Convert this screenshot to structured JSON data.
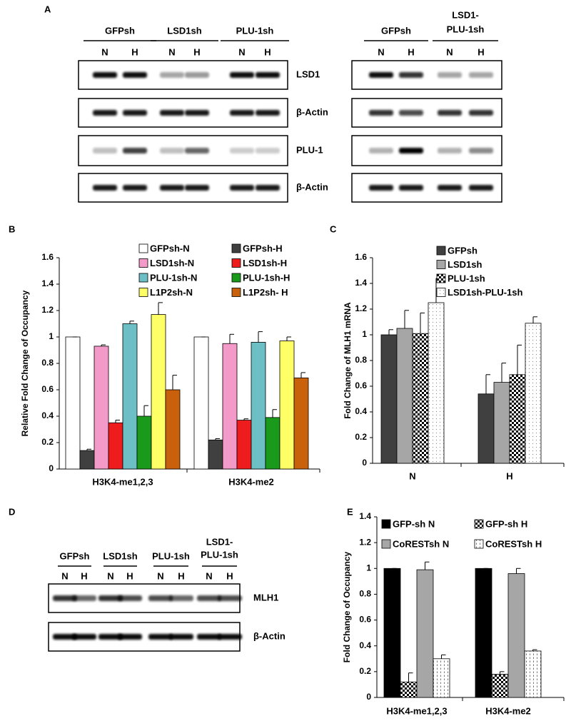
{
  "panel_a": {
    "label": "A",
    "blots": [
      {
        "groups": [
          {
            "name": [
              "GFPsh"
            ],
            "lanes": [
              "N",
              "H"
            ]
          },
          {
            "name": [
              "LSD1sh"
            ],
            "lanes": [
              "N",
              "H"
            ]
          },
          {
            "name": [
              "PLU-1sh"
            ],
            "lanes": [
              "N",
              "H"
            ]
          }
        ]
      },
      {
        "groups": [
          {
            "name": [
              "GFPsh"
            ],
            "lanes": [
              "N",
              "H"
            ]
          },
          {
            "name": [
              "LSD1-",
              "PLU-1sh"
            ],
            "lanes": [
              "N",
              "H"
            ]
          }
        ]
      }
    ],
    "rows": [
      "LSD1",
      "β-Actin",
      "PLU-1",
      "β-Actin"
    ]
  },
  "panel_d": {
    "label": "D",
    "groups": [
      {
        "name": [
          "GFPsh"
        ],
        "lanes": [
          "N",
          "H"
        ]
      },
      {
        "name": [
          "LSD1sh"
        ],
        "lanes": [
          "N",
          "H"
        ]
      },
      {
        "name": [
          "PLU-1sh"
        ],
        "lanes": [
          "N",
          "H"
        ]
      },
      {
        "name": [
          "LSD1-",
          "PLU-1sh"
        ],
        "lanes": [
          "N",
          "H"
        ]
      }
    ],
    "rows": [
      "MLH1",
      "β-Actin"
    ]
  },
  "chart_data": [
    {
      "type": "bar",
      "panel": "B",
      "y_label": "Relative Fold Change of Occupancy",
      "categories": [
        "H3K4-me1,2,3",
        "H3K4-me2"
      ],
      "ylim": [
        0,
        1.6
      ],
      "yticks": [
        0,
        0.2,
        0.4,
        0.6,
        0.8,
        1,
        1.2,
        1.4,
        1.6
      ],
      "series": [
        {
          "name": "GFPsh-N",
          "color": "#ffffff",
          "values": [
            1.0,
            1.0
          ],
          "errors": [
            0,
            0
          ]
        },
        {
          "name": "GFPsh-H",
          "color": "#404040",
          "values": [
            0.14,
            0.22
          ],
          "errors": [
            0.01,
            0.01
          ]
        },
        {
          "name": "LSD1sh-N",
          "color": "#f49ac8",
          "values": [
            0.93,
            0.95
          ],
          "errors": [
            0.01,
            0.07
          ]
        },
        {
          "name": "LSD1sh-H",
          "color": "#ee1c1c",
          "values": [
            0.35,
            0.37
          ],
          "errors": [
            0.02,
            0.01
          ]
        },
        {
          "name": "PLU-1sh-N",
          "color": "#6cbfc5",
          "values": [
            1.1,
            0.96
          ],
          "errors": [
            0.02,
            0.08
          ]
        },
        {
          "name": "PLU-1sh-H",
          "color": "#1a9a1a",
          "values": [
            0.4,
            0.39
          ],
          "errors": [
            0.08,
            0.06
          ]
        },
        {
          "name": "L1P2sh-N",
          "color": "#ffff66",
          "values": [
            1.17,
            0.97
          ],
          "errors": [
            0.09,
            0.03
          ]
        },
        {
          "name": "L1P2sh- H",
          "color": "#c8600c",
          "values": [
            0.6,
            0.69
          ],
          "errors": [
            0.11,
            0.04
          ]
        }
      ]
    },
    {
      "type": "bar",
      "panel": "C",
      "y_label": "Fold Change of MLH1 mRNA",
      "categories": [
        "N",
        "H"
      ],
      "ylim": [
        0,
        1.6
      ],
      "yticks": [
        0,
        0.2,
        0.4,
        0.6,
        0.8,
        1,
        1.2,
        1.4,
        1.6
      ],
      "series": [
        {
          "name": "GFPsh",
          "color": "#404040",
          "values": [
            1.0,
            0.54
          ],
          "errors": [
            0.04,
            0.15
          ]
        },
        {
          "name": "LSD1sh",
          "color": "#a6a6a6",
          "values": [
            1.05,
            0.63
          ],
          "errors": [
            0.14,
            0.15
          ]
        },
        {
          "name": "PLU-1sh",
          "color": "#000000",
          "pattern": "checker",
          "values": [
            1.01,
            0.69
          ],
          "errors": [
            0.16,
            0.23
          ]
        },
        {
          "name": "LSD1sh-PLU-1sh",
          "color": "#888888",
          "pattern": "dots",
          "values": [
            1.25,
            1.09
          ],
          "errors": [
            0.19,
            0.05
          ]
        }
      ]
    },
    {
      "type": "bar",
      "panel": "E",
      "y_label": "Fold Change of Occupancy",
      "categories": [
        "H3K4-me1,2,3",
        "H3K4-me2"
      ],
      "ylim": [
        0,
        1.4
      ],
      "yticks": [
        0,
        0.2,
        0.4,
        0.6,
        0.8,
        1,
        1.2,
        1.4
      ],
      "series": [
        {
          "name": "GFP-sh N",
          "color": "#000000",
          "values": [
            1.0,
            1.0
          ],
          "errors": [
            0,
            0
          ]
        },
        {
          "name": "GFP-sh H",
          "color": "#000000",
          "pattern": "checker",
          "values": [
            0.12,
            0.18
          ],
          "errors": [
            0.07,
            0.02
          ]
        },
        {
          "name": "CoRESTsh N",
          "color": "#a6a6a6",
          "values": [
            0.99,
            0.96
          ],
          "errors": [
            0.06,
            0.04
          ]
        },
        {
          "name": "CoRESTsh H",
          "color": "#555555",
          "pattern": "dashes",
          "values": [
            0.3,
            0.36
          ],
          "errors": [
            0.03,
            0.01
          ]
        }
      ]
    }
  ]
}
